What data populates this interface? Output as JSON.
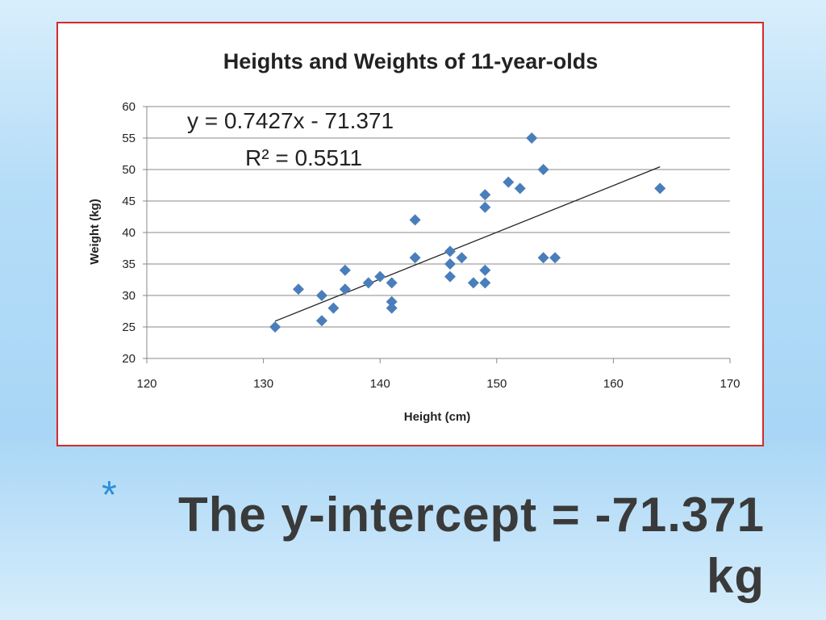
{
  "chart_data": {
    "type": "scatter",
    "title": "Heights and Weights of 11-year-olds",
    "x_label": "Height (cm)",
    "y_label": "Weight (kg)",
    "annotations": [
      "y = 0.7427x - 71.371",
      "R² = 0.5511"
    ],
    "color": "#4a7ebb",
    "grid": true,
    "x": [
      131,
      133,
      135,
      135,
      136,
      137,
      137,
      139,
      140,
      141,
      141,
      141,
      143,
      143,
      146,
      146,
      146,
      147,
      148,
      149,
      149,
      149,
      149,
      151,
      152,
      153,
      154,
      154,
      155,
      164
    ],
    "values": [
      25,
      31,
      30,
      26,
      28,
      34,
      31,
      32,
      33,
      32,
      29,
      28,
      42,
      36,
      37,
      35,
      33,
      36,
      32,
      46,
      44,
      34,
      32,
      48,
      47,
      55,
      50,
      36,
      36,
      47
    ],
    "trendline": {
      "x": [
        131,
        164
      ],
      "values": [
        25.92,
        50.43
      ]
    },
    "xlim": [
      120,
      170
    ],
    "xticks": [
      120,
      130,
      140,
      150,
      160,
      170
    ],
    "ylim": [
      20,
      60
    ],
    "yticks": [
      20,
      25,
      30,
      35,
      40,
      45,
      50,
      55,
      60
    ]
  },
  "slide": {
    "bullet": "*",
    "text": "The y-intercept = -71.371 kg"
  }
}
